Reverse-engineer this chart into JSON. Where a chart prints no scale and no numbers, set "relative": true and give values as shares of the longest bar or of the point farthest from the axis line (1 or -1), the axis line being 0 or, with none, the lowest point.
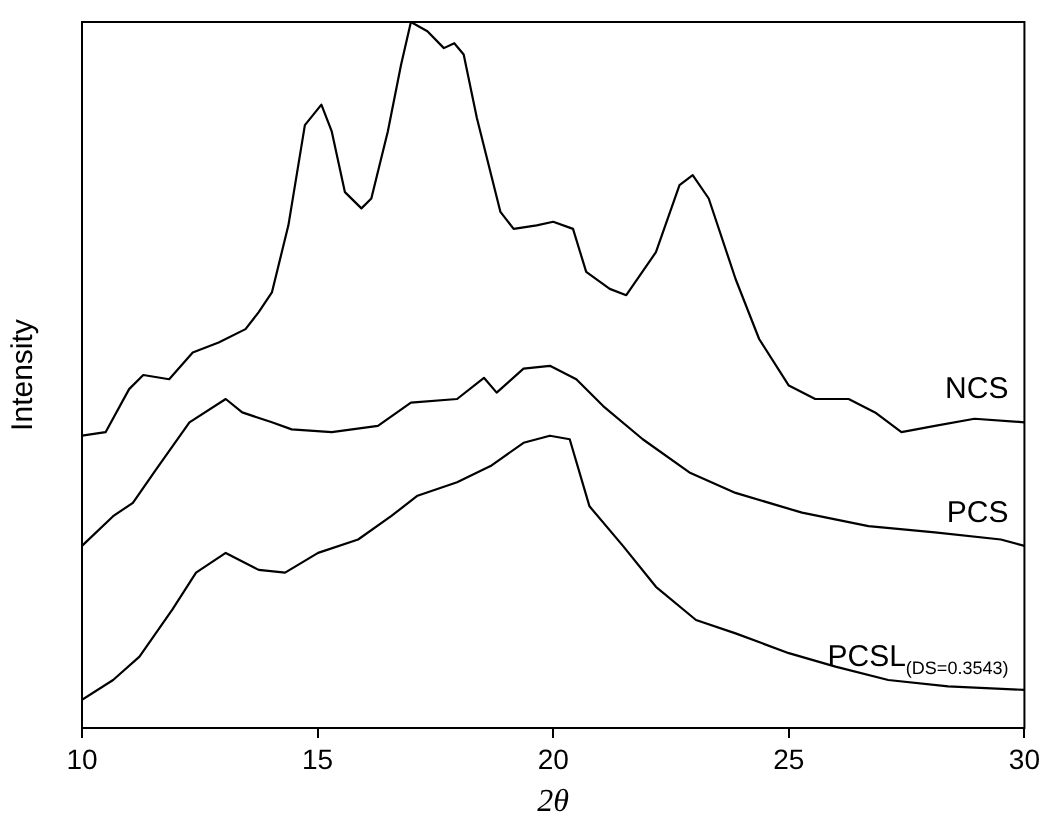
{
  "chart_data": {
    "type": "line",
    "relative": true,
    "xlabel": "2θ",
    "ylabel": "Intensity",
    "xlim": [
      10,
      30
    ],
    "xticks": [
      10,
      15,
      20,
      25,
      30
    ],
    "grid": false,
    "legend": false,
    "marker": "none",
    "line_style": "solid",
    "series": [
      {
        "name": "NCS",
        "color": "#000000",
        "x": [
          10,
          10.5,
          11.0,
          11.3,
          11.85,
          12.35,
          12.9,
          13.47,
          13.75,
          14.03,
          14.38,
          14.73,
          15.08,
          15.3,
          15.58,
          15.93,
          16.14,
          16.49,
          16.77,
          16.98,
          17.33,
          17.68,
          17.9,
          18.1,
          18.38,
          18.88,
          19.16,
          19.65,
          20.0,
          20.42,
          20.7,
          21.2,
          21.55,
          22.18,
          22.68,
          22.96,
          23.3,
          23.87,
          24.37,
          25.0,
          25.56,
          26.27,
          26.83,
          27.39,
          28.1,
          28.94,
          30.0
        ],
        "values": [
          0.414,
          0.419,
          0.48,
          0.5,
          0.494,
          0.532,
          0.546,
          0.565,
          0.589,
          0.617,
          0.712,
          0.854,
          0.883,
          0.845,
          0.759,
          0.736,
          0.75,
          0.845,
          0.939,
          1,
          0.987,
          0.963,
          0.97,
          0.954,
          0.864,
          0.731,
          0.707,
          0.712,
          0.717,
          0.707,
          0.646,
          0.622,
          0.613,
          0.674,
          0.769,
          0.783,
          0.75,
          0.636,
          0.551,
          0.485,
          0.466,
          0.466,
          0.447,
          0.419,
          0.428,
          0.438,
          0.433
        ]
      },
      {
        "name": "PCS",
        "color": "#000000",
        "x": [
          10,
          10.66,
          11.08,
          11.57,
          12.28,
          13.05,
          13.4,
          14.03,
          14.45,
          15.3,
          16.28,
          16.98,
          17.96,
          18.53,
          18.8,
          19.37,
          19.93,
          20.49,
          21.06,
          21.9,
          22.89,
          23.87,
          25.28,
          26.69,
          28.1,
          29.5,
          30
        ],
        "values": [
          0.258,
          0.3,
          0.319,
          0.366,
          0.433,
          0.466,
          0.447,
          0.433,
          0.423,
          0.419,
          0.428,
          0.461,
          0.466,
          0.496,
          0.475,
          0.509,
          0.513,
          0.494,
          0.456,
          0.409,
          0.362,
          0.333,
          0.305,
          0.286,
          0.277,
          0.267,
          0.258
        ]
      },
      {
        "name": "PCSL$_{(DS=0.3543)}$",
        "color": "#000000",
        "x": [
          10,
          10.66,
          11.22,
          11.92,
          12.42,
          13.05,
          13.75,
          14.31,
          15.01,
          15.86,
          16.56,
          17.12,
          17.96,
          18.67,
          19.37,
          19.93,
          20.35,
          20.77,
          21.48,
          22.18,
          23.03,
          23.87,
          25.0,
          25.99,
          27.11,
          28.38,
          30
        ],
        "values": [
          0.04,
          0.068,
          0.101,
          0.168,
          0.22,
          0.248,
          0.224,
          0.22,
          0.248,
          0.267,
          0.3,
          0.329,
          0.348,
          0.371,
          0.404,
          0.414,
          0.409,
          0.314,
          0.258,
          0.2,
          0.153,
          0.134,
          0.106,
          0.087,
          0.068,
          0.059,
          0.054
        ]
      }
    ]
  }
}
